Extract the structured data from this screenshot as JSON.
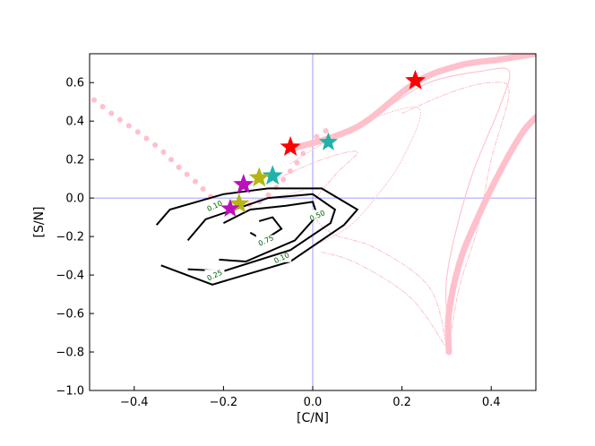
{
  "chart_data": {
    "type": "line",
    "xlabel": "[C/N]",
    "ylabel": "[S/N]",
    "xlim": [
      -0.5,
      0.5
    ],
    "ylim": [
      -1.0,
      0.75
    ],
    "xticks": [
      -0.4,
      -0.2,
      0.0,
      0.2,
      0.4
    ],
    "xtick_labels": [
      "−0.4",
      "−0.2",
      "0.0",
      "0.2",
      "0.4"
    ],
    "yticks": [
      -1.0,
      -0.8,
      -0.6,
      -0.4,
      -0.2,
      0.0,
      0.2,
      0.4,
      0.6
    ],
    "ytick_labels": [
      "−1.0",
      "−0.8",
      "−0.6",
      "−0.4",
      "−0.2",
      "0.0",
      "0.2",
      "0.4",
      "0.6"
    ],
    "grid": false,
    "reference_lines": [
      {
        "orientation": "vertical",
        "value": 0.0,
        "color": "#8080ff"
      },
      {
        "orientation": "horizontal",
        "value": 0.0,
        "color": "#8080ff"
      }
    ],
    "contours": [
      {
        "level": "0.10",
        "label_pos": [
          -0.22,
          -0.04
        ],
        "label_pos2": [
          -0.07,
          -0.31
        ],
        "points": [
          [
            -0.34,
            -0.35
          ],
          [
            -0.225,
            -0.45
          ],
          [
            -0.05,
            -0.33
          ],
          [
            0.07,
            -0.14
          ],
          [
            0.1,
            -0.06
          ],
          [
            0.02,
            0.05
          ],
          [
            -0.1,
            0.05
          ],
          [
            -0.2,
            0.02
          ],
          [
            -0.32,
            -0.06
          ],
          [
            -0.35,
            -0.14
          ]
        ]
      },
      {
        "level": "0.25",
        "label_pos": [
          -0.22,
          -0.4
        ],
        "points": [
          [
            -0.28,
            -0.37
          ],
          [
            -0.2,
            -0.38
          ],
          [
            -0.05,
            -0.27
          ],
          [
            0.04,
            -0.13
          ],
          [
            0.05,
            -0.06
          ],
          [
            0.0,
            0.02
          ],
          [
            -0.1,
            0.0
          ],
          [
            -0.24,
            -0.11
          ],
          [
            -0.28,
            -0.22
          ]
        ]
      },
      {
        "level": "0.50",
        "label_pos": [
          0.01,
          -0.09
        ],
        "points": [
          [
            -0.21,
            -0.32
          ],
          [
            -0.15,
            -0.33
          ],
          [
            -0.04,
            -0.22
          ],
          [
            0.01,
            -0.09
          ],
          [
            0.0,
            -0.02
          ],
          [
            -0.06,
            -0.04
          ],
          [
            -0.14,
            -0.06
          ],
          [
            -0.2,
            -0.13
          ]
        ]
      },
      {
        "level": "0.75",
        "label_pos": [
          -0.105,
          -0.22
        ],
        "points": [
          [
            -0.14,
            -0.18
          ],
          [
            -0.11,
            -0.22
          ],
          [
            -0.07,
            -0.16
          ],
          [
            -0.09,
            -0.1
          ],
          [
            -0.12,
            -0.12
          ]
        ]
      }
    ],
    "tracks": [
      {
        "style": "thick",
        "points": [
          [
            -0.04,
            0.26
          ],
          [
            0.1,
            0.37
          ],
          [
            0.23,
            0.6
          ],
          [
            0.33,
            0.69
          ],
          [
            0.42,
            0.72
          ],
          [
            0.5,
            0.75
          ]
        ]
      },
      {
        "style": "thick",
        "points": [
          [
            0.305,
            -0.8
          ],
          [
            0.305,
            -0.6
          ],
          [
            0.33,
            -0.33
          ],
          [
            0.37,
            -0.1
          ],
          [
            0.42,
            0.14
          ],
          [
            0.47,
            0.34
          ],
          [
            0.5,
            0.42
          ]
        ]
      },
      {
        "style": "thin",
        "points": [
          [
            0.16,
            0.46
          ],
          [
            0.26,
            0.6
          ],
          [
            0.38,
            0.66
          ],
          [
            0.44,
            0.66
          ],
          [
            0.42,
            0.48
          ],
          [
            0.36,
            0.14
          ],
          [
            0.32,
            -0.18
          ],
          [
            0.3,
            -0.42
          ],
          [
            0.3,
            -0.6
          ],
          [
            0.305,
            -0.78
          ]
        ]
      },
      {
        "style": "dashdot",
        "points": [
          [
            0.2,
            0.44
          ],
          [
            0.31,
            0.55
          ],
          [
            0.4,
            0.6
          ],
          [
            0.44,
            0.55
          ],
          [
            0.4,
            0.2
          ],
          [
            0.37,
            -0.15
          ],
          [
            0.33,
            -0.45
          ],
          [
            0.31,
            -0.7
          ]
        ]
      },
      {
        "style": "dotted",
        "points": [
          [
            -0.05,
            0.18
          ],
          [
            0.05,
            0.32
          ],
          [
            0.14,
            0.42
          ],
          [
            0.24,
            0.46
          ],
          [
            0.2,
            0.2
          ],
          [
            0.14,
            0.0
          ],
          [
            0.08,
            -0.15
          ],
          [
            0.0,
            -0.25
          ]
        ]
      },
      {
        "style": "dashdot",
        "points": [
          [
            -0.1,
            0.08
          ],
          [
            0.02,
            0.2
          ],
          [
            0.1,
            0.24
          ],
          [
            0.05,
            0.12
          ],
          [
            0.0,
            -0.05
          ],
          [
            0.04,
            -0.18
          ],
          [
            0.14,
            -0.26
          ],
          [
            0.26,
            -0.46
          ],
          [
            0.3,
            -0.76
          ]
        ]
      },
      {
        "style": "dashdot",
        "points": [
          [
            0.02,
            -0.28
          ],
          [
            0.1,
            -0.34
          ],
          [
            0.22,
            -0.52
          ],
          [
            0.3,
            -0.78
          ]
        ]
      },
      {
        "style": "dotted",
        "points": [
          [
            -0.18,
            -0.02
          ],
          [
            -0.1,
            0.0
          ],
          [
            -0.02,
            0.04
          ]
        ]
      }
    ],
    "dotted_thick_track": [
      [
        -0.49,
        0.51
      ],
      [
        -0.44,
        0.42
      ],
      [
        -0.39,
        0.34
      ],
      [
        -0.34,
        0.25
      ],
      [
        -0.3,
        0.16
      ],
      [
        -0.26,
        0.08
      ],
      [
        -0.23,
        0.01
      ],
      [
        -0.2,
        -0.05
      ],
      [
        -0.16,
        -0.04
      ],
      [
        -0.12,
        -0.02
      ],
      [
        -0.08,
        0.06
      ],
      [
        -0.04,
        0.17
      ],
      [
        0.0,
        0.3
      ],
      [
        0.03,
        0.35
      ]
    ],
    "stars": [
      {
        "x": 0.23,
        "y": 0.61,
        "color": "#ff0000",
        "size": 11
      },
      {
        "x": -0.05,
        "y": 0.265,
        "color": "#ff0000",
        "size": 11
      },
      {
        "x": 0.035,
        "y": 0.29,
        "color": "#20b2aa",
        "size": 10
      },
      {
        "x": -0.09,
        "y": 0.115,
        "color": "#20b2aa",
        "size": 11
      },
      {
        "x": -0.12,
        "y": 0.105,
        "color": "#b5b515",
        "size": 11
      },
      {
        "x": -0.155,
        "y": 0.07,
        "color": "#bb10bb",
        "size": 11
      },
      {
        "x": -0.165,
        "y": -0.03,
        "color": "#b5b515",
        "size": 11
      },
      {
        "x": -0.185,
        "y": -0.055,
        "color": "#bb10bb",
        "size": 10
      }
    ],
    "colors": {
      "track": "#ffc0cb",
      "contour": "#000000",
      "reference": "#8080ff"
    }
  }
}
